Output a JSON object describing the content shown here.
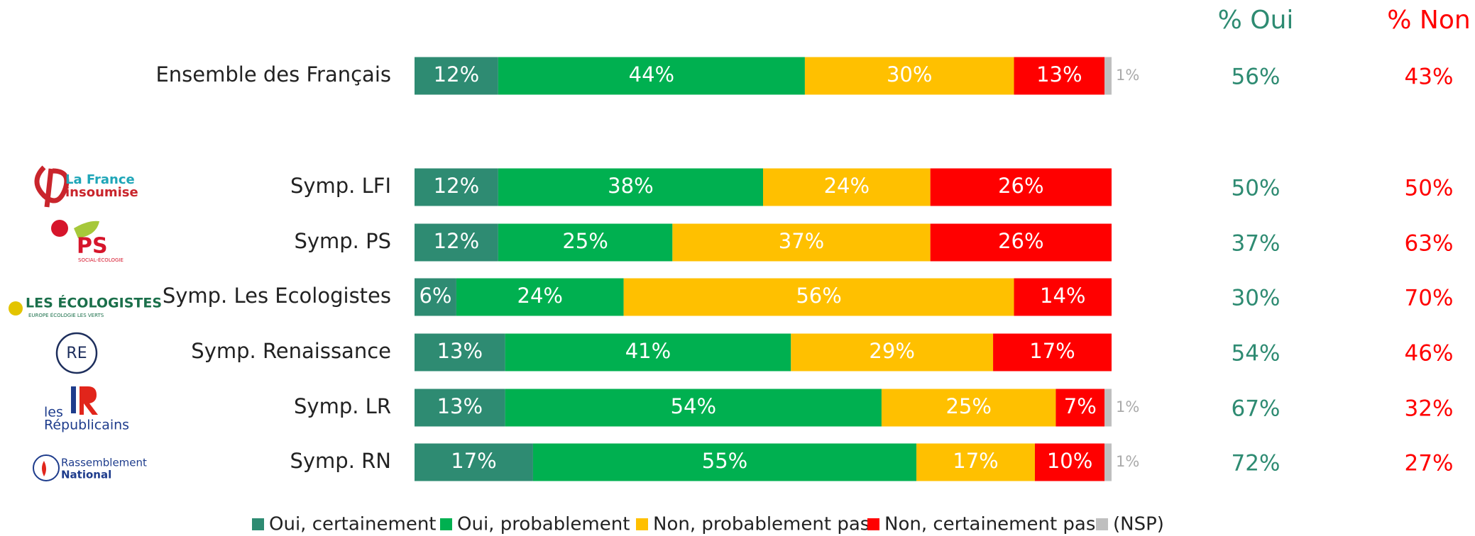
{
  "chart_data": {
    "type": "stacked-bar",
    "orientation": "horizontal",
    "categories": [
      "Ensemble des Français",
      "Symp. LFI",
      "Symp. PS",
      "Symp. Les Ecologistes",
      "Symp. Renaissance",
      "Symp. LR",
      "Symp. RN"
    ],
    "xlim": [
      0,
      100
    ],
    "series": [
      {
        "name": "Oui, certainement",
        "color": "#2e8b72",
        "values": [
          12,
          12,
          12,
          6,
          13,
          13,
          17
        ],
        "value_labels": [
          "12%",
          "12%",
          "12%",
          "6%",
          "13%",
          "13%",
          "17%"
        ]
      },
      {
        "name": "Oui, probablement",
        "color": "#00b050",
        "values": [
          44,
          38,
          25,
          24,
          41,
          54,
          55
        ],
        "value_labels": [
          "44%",
          "38%",
          "25%",
          "24%",
          "41%",
          "54%",
          "55%"
        ]
      },
      {
        "name": "Non, probablement pas",
        "color": "#ffc000",
        "values": [
          30,
          24,
          37,
          56,
          29,
          25,
          17
        ],
        "value_labels": [
          "30%",
          "24%",
          "37%",
          "56%",
          "29%",
          "25%",
          "17%"
        ]
      },
      {
        "name": "Non, certainement pas",
        "color": "#ff0000",
        "values": [
          13,
          26,
          26,
          14,
          17,
          7,
          10
        ],
        "value_labels": [
          "13%",
          "26%",
          "26%",
          "14%",
          "17%",
          "7%",
          "10%"
        ]
      },
      {
        "name": "(NSP)",
        "color": "#bfbfbf",
        "values": [
          1,
          null,
          null,
          null,
          null,
          1,
          1
        ],
        "value_labels": [
          "1%",
          null,
          null,
          null,
          null,
          "1%",
          "1%"
        ]
      }
    ],
    "totals": [
      {
        "name": "% Oui",
        "color": "#2e8b72",
        "values": [
          56,
          50,
          37,
          30,
          54,
          67,
          72
        ],
        "value_labels": [
          "56%",
          "50%",
          "37%",
          "30%",
          "54%",
          "67%",
          "72%"
        ]
      },
      {
        "name": "% Non",
        "color": "#ff0000",
        "values": [
          43,
          50,
          63,
          70,
          46,
          32,
          27
        ],
        "value_labels": [
          "43%",
          "50%",
          "63%",
          "70%",
          "46%",
          "32%",
          "27%"
        ]
      }
    ],
    "logos": [
      null,
      [
        "La France",
        "insoumise"
      ],
      [
        "PS",
        "SOCIAL-ÉCOLOGIE"
      ],
      [
        "LES ÉCOLOGISTES",
        "EUROPE ÉCOLOGIE LES VERTS"
      ],
      [
        "RE"
      ],
      [
        "les",
        "Républicains"
      ],
      [
        "Rassemblement",
        "National"
      ]
    ]
  }
}
